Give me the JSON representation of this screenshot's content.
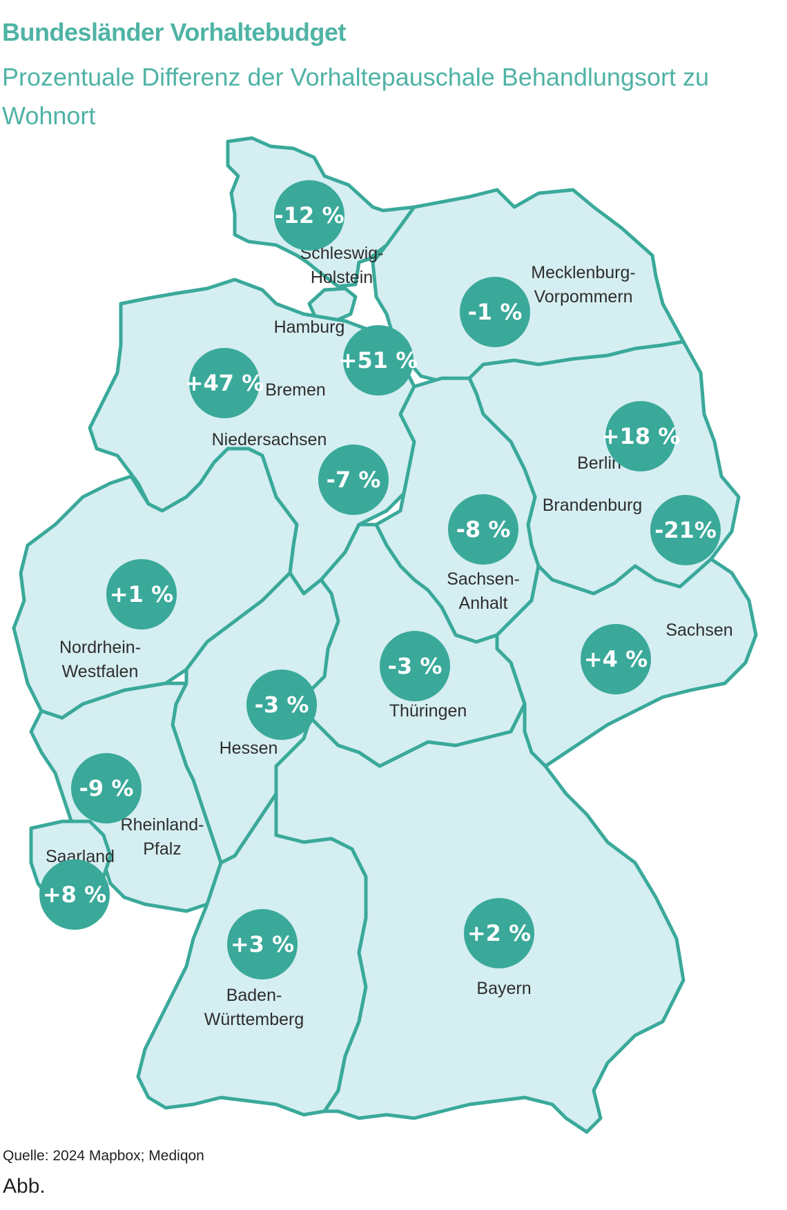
{
  "title": "Bundesländer Vorhaltebudget",
  "subtitle": "Prozentuale Differenz der Vorhaltepauschale Behandlungsort zu Wohnort",
  "source": "Quelle: 2024 Mapbox; Mediqon",
  "caption": "Abb.",
  "colors": {
    "title": "#4fb3a5",
    "land": "#d5eef1",
    "border": "#3aa99a",
    "badge": "#3aa99a",
    "badge_text": "#ffffff",
    "label_text": "#2e2e2e"
  },
  "map": {
    "states": [
      {
        "key": "sh",
        "label_lines": [
          "Schleswig-",
          "Holstein"
        ],
        "value": "-12 %"
      },
      {
        "key": "hh",
        "label_lines": [
          "Hamburg"
        ],
        "value": "+51 %"
      },
      {
        "key": "hb",
        "label_lines": [
          "Bremen"
        ],
        "value": "+47 %"
      },
      {
        "key": "mv",
        "label_lines": [
          "Mecklenburg-",
          "Vorpommern"
        ],
        "value": "-1 %"
      },
      {
        "key": "ni",
        "label_lines": [
          "Niedersachsen"
        ],
        "value": "-7 %"
      },
      {
        "key": "be",
        "label_lines": [
          "Berlin"
        ],
        "value": "+18 %"
      },
      {
        "key": "bb",
        "label_lines": [
          "Brandenburg"
        ],
        "value": "-21%"
      },
      {
        "key": "st",
        "label_lines": [
          "Sachsen-",
          "Anhalt"
        ],
        "value": "-8 %"
      },
      {
        "key": "nw",
        "label_lines": [
          "Nordrhein-",
          "Westfalen"
        ],
        "value": "+1 %"
      },
      {
        "key": "sn",
        "label_lines": [
          "Sachsen"
        ],
        "value": "+4 %"
      },
      {
        "key": "th",
        "label_lines": [
          "Thüringen"
        ],
        "value": "-3 %"
      },
      {
        "key": "he",
        "label_lines": [
          "Hessen"
        ],
        "value": "-3 %"
      },
      {
        "key": "rp",
        "label_lines": [
          "Rheinland-",
          "Pfalz"
        ],
        "value": "-9 %"
      },
      {
        "key": "sl",
        "label_lines": [
          "Saarland"
        ],
        "value": "+8 %"
      },
      {
        "key": "bw",
        "label_lines": [
          "Baden-",
          "Württemberg"
        ],
        "value": "+3 %"
      },
      {
        "key": "by",
        "label_lines": [
          "Bayern"
        ],
        "value": "+2 %"
      }
    ]
  }
}
